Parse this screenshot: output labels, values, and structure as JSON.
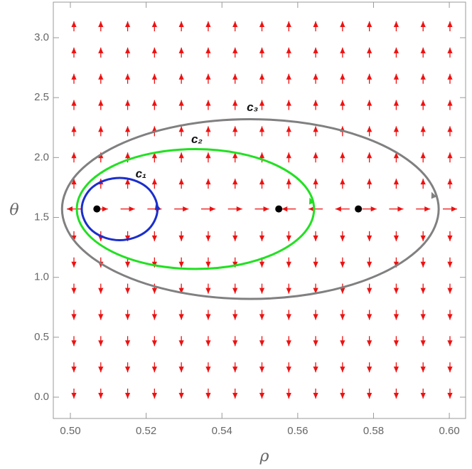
{
  "chart_data": {
    "type": "phase",
    "xlabel": "ρ",
    "ylabel": "θ",
    "xlim": [
      0.4955,
      0.6043
    ],
    "ylim": [
      -0.178,
      3.297
    ],
    "xticks": [
      {
        "value": 0.5,
        "label": "0.50"
      },
      {
        "value": 0.52,
        "label": "0.52"
      },
      {
        "value": 0.54,
        "label": "0.54"
      },
      {
        "value": 0.56,
        "label": "0.56"
      },
      {
        "value": 0.58,
        "label": "0.58"
      },
      {
        "value": 0.6,
        "label": "0.60"
      }
    ],
    "yticks": [
      {
        "value": 0,
        "label": "0.0"
      },
      0.5,
      {
        "value": 1,
        "label": "1.0"
      },
      1.5,
      {
        "value": 2,
        "label": "2.0"
      },
      2.5,
      {
        "value": 3,
        "label": "3.0"
      }
    ],
    "field_color": "#ee1111",
    "points": {
      "color": "#000000",
      "x": [
        0.507,
        0.555,
        0.576
      ],
      "y": [
        1.5708,
        1.5708,
        1.5708
      ]
    },
    "series": [
      {
        "name": "c₁",
        "color": "#1a2ecc",
        "x": [
          0.523,
          0.5222,
          0.5201,
          0.5168,
          0.513,
          0.5092,
          0.5059,
          0.5038,
          0.503,
          0.5038,
          0.5059,
          0.5092,
          0.513,
          0.5168,
          0.5201,
          0.5222
        ],
        "y": [
          1.57,
          1.669,
          1.754,
          1.81,
          1.83,
          1.81,
          1.754,
          1.669,
          1.57,
          1.471,
          1.386,
          1.33,
          1.31,
          1.33,
          1.386,
          1.471
        ]
      },
      {
        "name": "c₂",
        "color": "#22e022",
        "x": [
          0.5643,
          0.5619,
          0.5551,
          0.545,
          0.533,
          0.521,
          0.5109,
          0.5041,
          0.5017,
          0.5041,
          0.5109,
          0.521,
          0.533,
          0.545,
          0.5551,
          0.5619
        ],
        "y": [
          1.57,
          1.762,
          1.924,
          2.032,
          2.07,
          2.032,
          1.924,
          1.762,
          1.57,
          1.378,
          1.216,
          1.108,
          1.07,
          1.108,
          1.216,
          1.378
        ]
      },
      {
        "name": "c₃",
        "color": "#808080",
        "x": [
          0.5972,
          0.5934,
          0.5826,
          0.5665,
          0.5475,
          0.5285,
          0.5124,
          0.5016,
          0.4978,
          0.5016,
          0.5124,
          0.5285,
          0.5475,
          0.5665,
          0.5826,
          0.5934
        ],
        "y": [
          1.57,
          1.857,
          2.1,
          2.263,
          2.32,
          2.263,
          2.1,
          1.857,
          1.57,
          1.283,
          1.04,
          0.877,
          0.82,
          0.877,
          1.04,
          1.283
        ]
      }
    ]
  }
}
